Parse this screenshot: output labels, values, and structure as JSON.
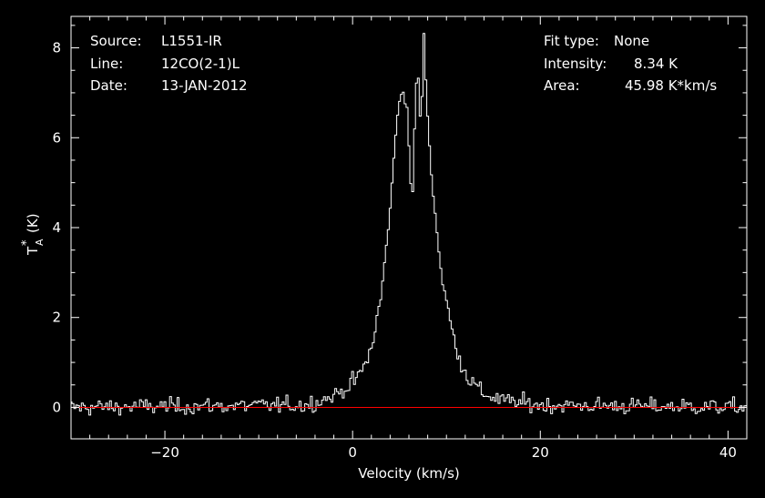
{
  "header": {
    "source_label": "Source:",
    "source_value": "L1551-IR",
    "line_label": "Line:",
    "line_value": "12CO(2-1)L",
    "date_label": "Date:",
    "date_value": "13-JAN-2012",
    "fit_label": "Fit type:",
    "fit_value": "None",
    "intensity_label": "Intensity:",
    "intensity_value": "8.34 K",
    "area_label": "Area:",
    "area_value": "45.98 K*km/s"
  },
  "colors": {
    "background": "#000000",
    "trace": "#ffffff",
    "baseline": "#ff0000",
    "axes": "#ffffff"
  },
  "chart_data": {
    "type": "line",
    "style": "histogram-step",
    "xlabel": "Velocity (km/s)",
    "ylabel_main": "T",
    "ylabel_sub": "A",
    "ylabel_sup": "*",
    "ylabel_unit": "(K)",
    "xlim": [
      -30,
      42
    ],
    "ylim": [
      -0.7,
      8.7
    ],
    "xticks": [
      -20,
      0,
      20,
      40
    ],
    "xtick_labels": [
      "−20",
      "0",
      "20",
      "40"
    ],
    "yticks": [
      0,
      2,
      4,
      6,
      8
    ],
    "ytick_labels": [
      "0",
      "2",
      "4",
      "6",
      "8"
    ],
    "baseline": 0,
    "x_range": [
      -30,
      42
    ],
    "channel_width": 0.2,
    "series": [
      {
        "profile": [
          [
            -30,
            0.0
          ],
          [
            -5,
            0.05
          ],
          [
            -2,
            0.25
          ],
          [
            0,
            0.55
          ],
          [
            1,
            0.8
          ],
          [
            2,
            1.3
          ],
          [
            3,
            2.4
          ],
          [
            4,
            4.4
          ],
          [
            4.6,
            6.1
          ],
          [
            5.0,
            6.9
          ],
          [
            5.4,
            7.0
          ],
          [
            5.8,
            6.6
          ],
          [
            6.2,
            5.0
          ],
          [
            6.4,
            4.8
          ],
          [
            6.6,
            6.2
          ],
          [
            6.9,
            7.7
          ],
          [
            7.1,
            6.9
          ],
          [
            7.3,
            6.1
          ],
          [
            7.6,
            8.34
          ],
          [
            7.9,
            6.8
          ],
          [
            8.5,
            4.9
          ],
          [
            9.5,
            2.9
          ],
          [
            10.5,
            1.8
          ],
          [
            11.5,
            1.0
          ],
          [
            12.5,
            0.6
          ],
          [
            14,
            0.3
          ],
          [
            16,
            0.15
          ],
          [
            20,
            0.05
          ],
          [
            42,
            0.0
          ]
        ],
        "noise_rms": 0.09
      }
    ]
  }
}
